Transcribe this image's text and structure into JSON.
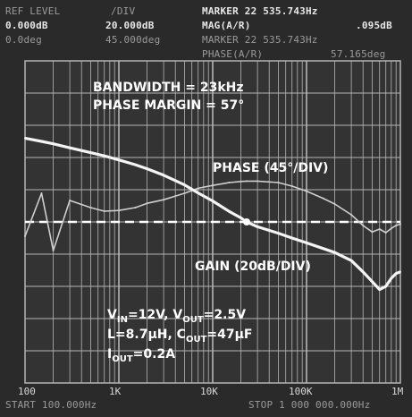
{
  "header": {
    "ref_level_label": "REF LEVEL",
    "ref_level_value": "0.000dB",
    "ref_phase_value": "0.0deg",
    "div_label": "/DIV",
    "div_gain_value": "20.000dB",
    "div_phase_value": "45.000deg",
    "marker_label": "MARKER 22 535.743Hz",
    "mag_label": "MAG(A/R)",
    "mag_value": ".095dB",
    "marker2_label": "MARKER 22 535.743Hz",
    "phase_label": "PHASE(A/R)",
    "phase_value": "57.165deg"
  },
  "annotations": {
    "bandwidth": "BANDWIDTH = 23kHz",
    "phase_margin": "PHASE MARGIN = 57°",
    "phase_trace": "PHASE (45°/DIV)",
    "gain_trace": "GAIN (20dB/DIV)",
    "vin_prefix": "V",
    "vin_sub": "IN",
    "vin_value": "=12V, ",
    "vout_prefix": "V",
    "vout_sub": "OUT",
    "vout_value": "=2.5V",
    "l_line": "L=8.7μH, ",
    "cout_prefix": "C",
    "cout_sub": "OUT",
    "cout_value": "=47μF",
    "iout_prefix": "I",
    "iout_sub": "OUT",
    "iout_value": "=0.2A"
  },
  "footer": {
    "start_label": "START 100.000Hz",
    "stop_label": "STOP 1 000 000.000Hz"
  },
  "colors": {
    "screen": "#2a2a2a",
    "grid": "#b5b5b5",
    "gain_trace": "#f4f4f4",
    "phase_trace": "#cfcfcf",
    "reference": "#ffffff"
  },
  "chart_data": {
    "type": "line",
    "title": "",
    "xlabel": "",
    "ylabel": "",
    "x_scale": "log",
    "xlim": [
      100,
      1000000
    ],
    "x_ticks": [
      100,
      1000,
      10000,
      100000,
      1000000
    ],
    "x_tick_labels": [
      "100",
      "1K",
      "10K",
      "100K",
      "1M"
    ],
    "grid": true,
    "gain_scale_db_per_div": 20,
    "phase_scale_deg_per_div": 45,
    "reference_line": {
      "gain_db": 0,
      "phase_deg": 0
    },
    "crossover_hz": 23000,
    "phase_margin_deg": 57,
    "series": [
      {
        "name": "GAIN (20dB/DIV)",
        "x": [
          100,
          150,
          200,
          300,
          500,
          700,
          1000,
          1500,
          2000,
          3000,
          5000,
          7000,
          10000,
          15000,
          20000,
          23000,
          30000,
          50000,
          70000,
          100000,
          150000,
          200000,
          300000,
          400000,
          500000,
          600000,
          700000,
          800000,
          900000,
          1000000
        ],
        "values": [
          52,
          50,
          48.5,
          46,
          43,
          41,
          38.5,
          35.5,
          33,
          29,
          23,
          18,
          13,
          6.5,
          2.5,
          0,
          -3,
          -7,
          -10,
          -13,
          -16.5,
          -19,
          -24,
          -31,
          -37,
          -42,
          -40,
          -35,
          -32,
          -31
        ]
      },
      {
        "name": "PHASE (45°/DIV)",
        "x": [
          100,
          150,
          200,
          300,
          500,
          700,
          1000,
          1500,
          2000,
          3000,
          5000,
          7000,
          10000,
          15000,
          20000,
          23000,
          30000,
          50000,
          70000,
          100000,
          150000,
          200000,
          300000,
          400000,
          500000,
          600000,
          700000,
          800000,
          900000,
          1000000
        ],
        "values": [
          -20,
          40,
          -40,
          30,
          20,
          15,
          16,
          20,
          26,
          31,
          40,
          47,
          51,
          55,
          56.5,
          57,
          57,
          55,
          50,
          43,
          33,
          25,
          10,
          -5,
          -14,
          -10,
          -15,
          -9,
          -5,
          -3
        ]
      }
    ]
  }
}
